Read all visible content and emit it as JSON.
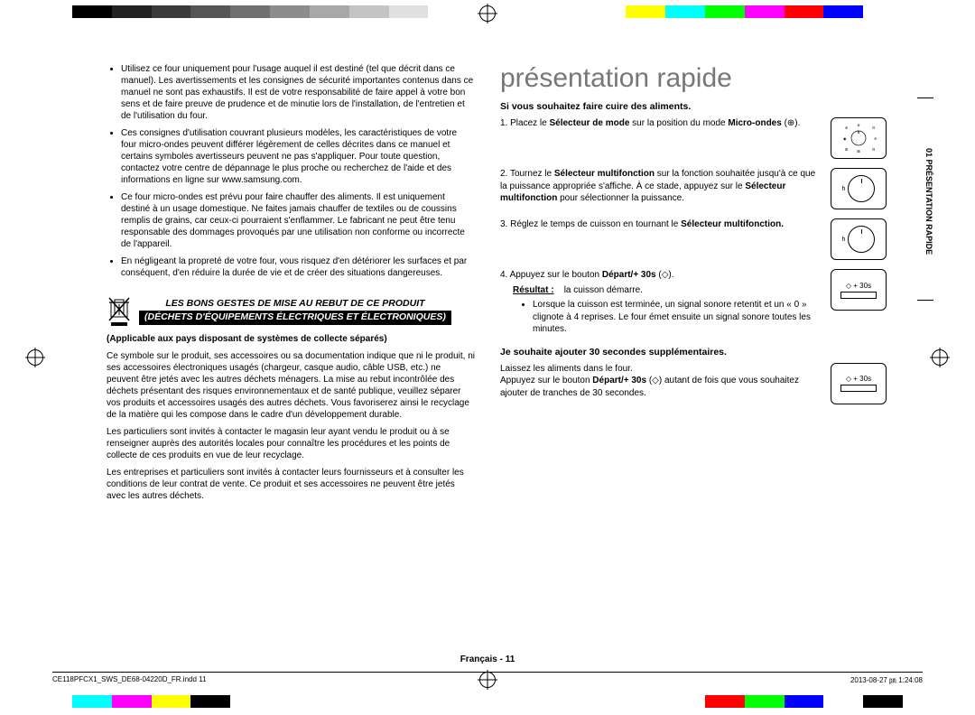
{
  "color_bars": {
    "top": [
      "#000",
      "#222",
      "#3a3a3a",
      "#555",
      "#707070",
      "#8c8c8c",
      "#a8a8a8",
      "#c4c4c4",
      "#e0e0e0",
      "#fff",
      "#fff",
      "#fff",
      "#fff",
      "#fff",
      "#ffff00",
      "#00ffff",
      "#00ff00",
      "#ff00ff",
      "#ff0000",
      "#0000ff",
      "#fff"
    ],
    "bottom": [
      "#00ffff",
      "#ff00ff",
      "#ffff00",
      "#000",
      "#fff",
      "#fff",
      "#fff",
      "#fff",
      "#fff",
      "#fff",
      "#fff",
      "#fff",
      "#fff",
      "#fff",
      "#fff",
      "#fff",
      "#ff0000",
      "#00ff00",
      "#0000ff",
      "#fff",
      "#000"
    ]
  },
  "left_col": {
    "bullets": [
      "Utilisez ce four uniquement pour l'usage auquel il est destiné (tel que décrit dans ce manuel). Les avertissements et les consignes de sécurité importantes contenus dans ce manuel ne sont pas exhaustifs. Il est de votre responsabilité de faire appel à votre bon sens et de faire preuve de prudence et de minutie lors de l'installation, de l'entretien et de l'utilisation du four.",
      "Ces consignes d'utilisation couvrant plusieurs modèles, les caractéristiques de votre four micro-ondes peuvent différer légèrement de celles décrites dans ce manuel et certains symboles avertisseurs peuvent ne pas s'appliquer. Pour toute question, contactez votre centre de dépannage le plus proche ou recherchez de l'aide et des informations en ligne sur www.samsung.com.",
      "Ce four micro-ondes est prévu pour faire chauffer des aliments. Il est uniquement destiné à un usage domestique. Ne faites jamais chauffer de textiles ou de coussins remplis de grains, car ceux-ci pourraient s'enflammer. Le fabricant ne peut être tenu responsable des dommages provoqués par une utilisation non conforme ou incorrecte de l'appareil.",
      "En négligeant la propreté de votre four, vous risquez d'en détériorer les surfaces et par conséquent, d'en réduire la durée de vie et de créer des situations dangereuses."
    ],
    "weee_title_l1": "LES BONS GESTES DE MISE AU REBUT DE CE PRODUIT",
    "weee_title_l2": "(DÉCHETS D'ÉQUIPEMENTS ÉLECTRIQUES ET ÉLECTRONIQUES)",
    "applicable": "(Applicable aux pays disposant de systèmes de collecte séparés)",
    "weee_p1": "Ce symbole sur le produit, ses accessoires ou sa documentation indique que ni le produit, ni ses accessoires électroniques usagés (chargeur, casque audio, câble USB, etc.) ne peuvent être jetés avec les autres déchets ménagers. La mise au rebut incontrôlée des déchets présentant des risques environnementaux et de santé publique, veuillez séparer vos produits et accessoires usagés des autres déchets. Vous favoriserez ainsi le recyclage de la matière qui les compose dans le cadre d'un développement durable.",
    "weee_p2": "Les particuliers sont invités à contacter le magasin leur ayant vendu le produit ou à se renseigner auprès des autorités locales pour connaître les procédures et les points de collecte de ces produits en vue de leur recyclage.",
    "weee_p3": "Les entreprises et particuliers sont invités à contacter leurs fournisseurs et à consulter les conditions de leur contrat de vente. Ce produit et ses accessoires ne peuvent être jetés avec les autres déchets."
  },
  "right_col": {
    "heading": "présentation rapide",
    "sub1": "Si vous souhaitez faire cuire des aliments.",
    "step1_pre": "1.  Placez le ",
    "step1_b1": "Sélecteur de mode",
    "step1_mid": " sur la position du mode ",
    "step1_b2": "Micro-ondes",
    "step1_end": " (⊕).",
    "step2_pre": "2.  Tournez le ",
    "step2_b1": "Sélecteur multifonction",
    "step2_mid": " sur la fonction souhaitée jusqu'à ce que la puissance appropriée s'affiche. À ce stade, appuyez sur le ",
    "step2_b2": "Sélecteur multifonction",
    "step2_end": " pour sélectionner la puissance.",
    "step3_pre": "3.  Réglez le temps de cuisson en tournant le ",
    "step3_b": "Sélecteur multifonction.",
    "step4_pre": "4.  Appuyez sur le bouton ",
    "step4_b": "Départ/+ 30s",
    "step4_end": " (◇).",
    "result_lbl": "Résultat :",
    "result_txt": "la cuisson démarre.",
    "result_bullet": "Lorsque la cuisson est terminée, un signal sonore retentit et un « 0 » clignote à 4 reprises. Le four émet ensuite un signal sonore toutes les minutes.",
    "sub2": "Je souhaite ajouter 30 secondes supplémentaires.",
    "p2a": "Laissez les aliments dans le four.",
    "p2b_pre": "Appuyez sur le bouton ",
    "p2b_b": "Départ/+ 30s",
    "p2b_end": " (◇) autant de fois que vous souhaitez ajouter de tranches de 30 secondes.",
    "side_tab": "01 PRÉSENTATION RAPIDE",
    "icon_label": "+ 30s"
  },
  "footer": {
    "page": "Français - 11",
    "file": "CE118PFCX1_SWS_DE68-04220D_FR.indd   11",
    "date": "2013-08-27   ㏘ 1:24:08"
  }
}
